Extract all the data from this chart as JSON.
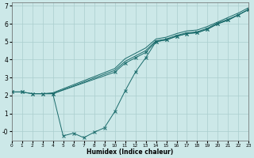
{
  "xlabel": "Humidex (Indice chaleur)",
  "background_color": "#cce8e8",
  "grid_color": "#aacece",
  "line_color": "#1a6b6b",
  "xlim": [
    0,
    23
  ],
  "ylim": [
    -0.5,
    7.2
  ],
  "xticks": [
    0,
    1,
    2,
    3,
    4,
    5,
    6,
    7,
    8,
    9,
    10,
    11,
    12,
    13,
    14,
    15,
    16,
    17,
    18,
    19,
    20,
    21,
    22,
    23
  ],
  "yticks": [
    0,
    1,
    2,
    3,
    4,
    5,
    6,
    7
  ],
  "ytick_labels": [
    "-0",
    "1",
    "2",
    "3",
    "4",
    "5",
    "6",
    "7"
  ],
  "lines": [
    {
      "x": [
        2,
        3,
        4,
        10,
        11,
        12,
        13,
        14,
        15,
        16,
        17,
        18,
        19,
        20,
        21,
        22,
        23
      ],
      "y": [
        2.1,
        2.1,
        2.15,
        3.5,
        4.05,
        4.35,
        4.65,
        5.15,
        5.25,
        5.45,
        5.6,
        5.65,
        5.85,
        6.1,
        6.35,
        6.6,
        6.9
      ],
      "marker": null
    },
    {
      "x": [
        2,
        3,
        4,
        10,
        11,
        12,
        13,
        14,
        15,
        16,
        17,
        18,
        19,
        20,
        21,
        22,
        23
      ],
      "y": [
        2.1,
        2.1,
        2.1,
        3.4,
        3.9,
        4.2,
        4.5,
        5.05,
        5.15,
        5.35,
        5.5,
        5.55,
        5.75,
        6.05,
        6.25,
        6.5,
        6.8
      ],
      "marker": null
    },
    {
      "x": [
        0,
        1,
        2,
        3,
        4,
        10,
        11,
        12,
        13,
        14,
        15,
        16,
        17,
        18,
        19,
        20,
        21,
        22,
        23
      ],
      "y": [
        2.2,
        2.2,
        2.1,
        2.1,
        2.1,
        3.3,
        3.8,
        4.1,
        4.4,
        5.0,
        5.1,
        5.3,
        5.45,
        5.5,
        5.7,
        6.0,
        6.2,
        6.5,
        6.8
      ],
      "marker": "x"
    },
    {
      "x": [
        0,
        1,
        2,
        3,
        4,
        5,
        6,
        7,
        8,
        9,
        10,
        11,
        12,
        13,
        14,
        15,
        16,
        17,
        18,
        19,
        20,
        21,
        22,
        23
      ],
      "y": [
        2.2,
        2.2,
        2.1,
        2.1,
        2.1,
        -0.25,
        -0.1,
        -0.35,
        -0.05,
        0.2,
        1.1,
        2.25,
        3.3,
        4.1,
        5.0,
        5.1,
        5.3,
        5.45,
        5.5,
        5.7,
        6.0,
        6.2,
        6.5,
        6.8
      ],
      "marker": "x"
    }
  ]
}
